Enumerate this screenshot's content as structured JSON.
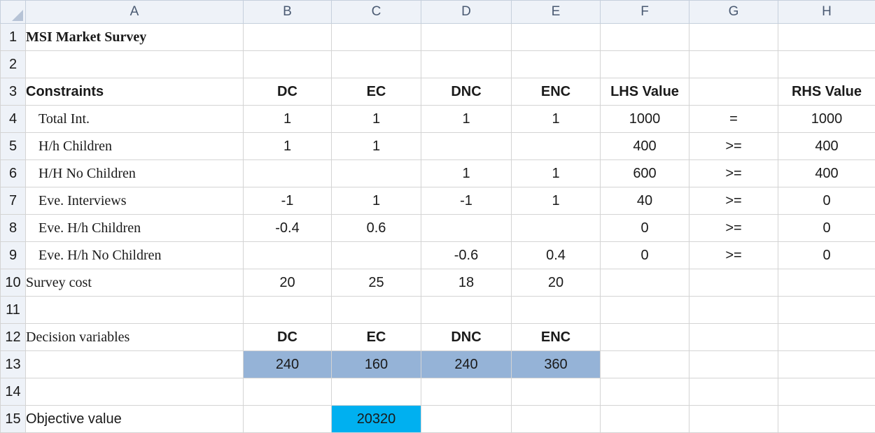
{
  "columns": [
    "A",
    "B",
    "C",
    "D",
    "E",
    "F",
    "G",
    "H"
  ],
  "rows": [
    "1",
    "2",
    "3",
    "4",
    "5",
    "6",
    "7",
    "8",
    "9",
    "10",
    "11",
    "12",
    "13",
    "14",
    "15"
  ],
  "title": "MSI Market Survey",
  "headers": {
    "constraints": "Constraints",
    "dc": "DC",
    "ec": "EC",
    "dnc": "DNC",
    "enc": "ENC",
    "lhs": "LHS Value",
    "rhs": "RHS Value"
  },
  "constraints": [
    {
      "name": "Total Int.",
      "dc": "1",
      "ec": "1",
      "dnc": "1",
      "enc": "1",
      "lhs": "1000",
      "op": "=",
      "rhs": "1000"
    },
    {
      "name": "H/h Children",
      "dc": "1",
      "ec": "1",
      "dnc": "",
      "enc": "",
      "lhs": "400",
      "op": ">=",
      "rhs": "400"
    },
    {
      "name": "H/H No Children",
      "dc": "",
      "ec": "",
      "dnc": "1",
      "enc": "1",
      "lhs": "600",
      "op": ">=",
      "rhs": "400"
    },
    {
      "name": "Eve. Interviews",
      "dc": "-1",
      "ec": "1",
      "dnc": "-1",
      "enc": "1",
      "lhs": "40",
      "op": ">=",
      "rhs": "0"
    },
    {
      "name": "Eve. H/h Children",
      "dc": "-0.4",
      "ec": "0.6",
      "dnc": "",
      "enc": "",
      "lhs": "0",
      "op": ">=",
      "rhs": "0"
    },
    {
      "name": "Eve. H/h No Children",
      "dc": "",
      "ec": "",
      "dnc": "-0.6",
      "enc": "0.4",
      "lhs": "0",
      "op": ">=",
      "rhs": "0"
    }
  ],
  "survey_cost": {
    "label": "Survey cost",
    "dc": "20",
    "ec": "25",
    "dnc": "18",
    "enc": "20"
  },
  "decision": {
    "label": "Decision variables",
    "dc": "DC",
    "ec": "EC",
    "dnc": "DNC",
    "enc": "ENC"
  },
  "values": {
    "dc": "240",
    "ec": "160",
    "dnc": "240",
    "enc": "360"
  },
  "objective": {
    "label": "Objective value",
    "value": "20320"
  },
  "colors": {
    "variable_fill": "#95b3d7",
    "objective_fill": "#00b0f0",
    "header_fill": "#eef2f8"
  }
}
